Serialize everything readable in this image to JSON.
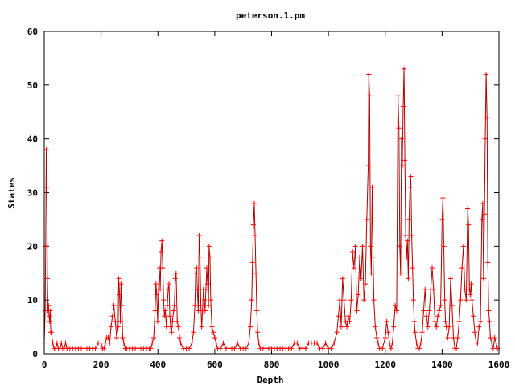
{
  "chart_data": {
    "type": "line",
    "title": "peterson.1.pm",
    "xlabel": "Depth",
    "ylabel": "States",
    "xlim": [
      0,
      1600
    ],
    "ylim": [
      0,
      60
    ],
    "x_ticks": [
      "0",
      "200",
      "400",
      "600",
      "800",
      "1000",
      "1200",
      "1400",
      "1600"
    ],
    "y_ticks": [
      "0",
      "10",
      "20",
      "30",
      "40",
      "50",
      "60"
    ],
    "grid": false,
    "legend": "none",
    "marker": "plus",
    "series_color": "#ff0000",
    "line_color": "#b00000",
    "points": [
      [
        0,
        2
      ],
      [
        3,
        8
      ],
      [
        5,
        20
      ],
      [
        7,
        38
      ],
      [
        9,
        31
      ],
      [
        11,
        14
      ],
      [
        13,
        8
      ],
      [
        15,
        9
      ],
      [
        17,
        7
      ],
      [
        19,
        6
      ],
      [
        21,
        8
      ],
      [
        23,
        4
      ],
      [
        25,
        4
      ],
      [
        30,
        2
      ],
      [
        35,
        1
      ],
      [
        40,
        1
      ],
      [
        45,
        2
      ],
      [
        50,
        1
      ],
      [
        55,
        1
      ],
      [
        60,
        2
      ],
      [
        65,
        1
      ],
      [
        70,
        1
      ],
      [
        75,
        2
      ],
      [
        80,
        1
      ],
      [
        90,
        1
      ],
      [
        100,
        1
      ],
      [
        110,
        1
      ],
      [
        120,
        1
      ],
      [
        130,
        1
      ],
      [
        140,
        1
      ],
      [
        150,
        1
      ],
      [
        160,
        1
      ],
      [
        170,
        1
      ],
      [
        180,
        1
      ],
      [
        190,
        2
      ],
      [
        200,
        2
      ],
      [
        205,
        1
      ],
      [
        210,
        1
      ],
      [
        215,
        2
      ],
      [
        220,
        3
      ],
      [
        225,
        3
      ],
      [
        230,
        2
      ],
      [
        235,
        5
      ],
      [
        240,
        7
      ],
      [
        245,
        9
      ],
      [
        250,
        6
      ],
      [
        255,
        3
      ],
      [
        260,
        5
      ],
      [
        262,
        14
      ],
      [
        265,
        11
      ],
      [
        268,
        6
      ],
      [
        270,
        13
      ],
      [
        273,
        9
      ],
      [
        276,
        3
      ],
      [
        280,
        2
      ],
      [
        285,
        1
      ],
      [
        290,
        1
      ],
      [
        300,
        1
      ],
      [
        310,
        1
      ],
      [
        320,
        1
      ],
      [
        330,
        1
      ],
      [
        340,
        1
      ],
      [
        350,
        1
      ],
      [
        360,
        1
      ],
      [
        370,
        1
      ],
      [
        375,
        1
      ],
      [
        380,
        2
      ],
      [
        385,
        3
      ],
      [
        390,
        8
      ],
      [
        393,
        13
      ],
      [
        396,
        11
      ],
      [
        399,
        6
      ],
      [
        402,
        12
      ],
      [
        405,
        16
      ],
      [
        408,
        12
      ],
      [
        411,
        19
      ],
      [
        414,
        21
      ],
      [
        417,
        16
      ],
      [
        420,
        10
      ],
      [
        423,
        7
      ],
      [
        426,
        8
      ],
      [
        430,
        5
      ],
      [
        433,
        9
      ],
      [
        436,
        12
      ],
      [
        439,
        13
      ],
      [
        442,
        7
      ],
      [
        445,
        5
      ],
      [
        448,
        4
      ],
      [
        451,
        6
      ],
      [
        455,
        8
      ],
      [
        458,
        9
      ],
      [
        461,
        14
      ],
      [
        464,
        15
      ],
      [
        468,
        6
      ],
      [
        472,
        5
      ],
      [
        476,
        3
      ],
      [
        480,
        2
      ],
      [
        490,
        1
      ],
      [
        500,
        1
      ],
      [
        510,
        1
      ],
      [
        520,
        2
      ],
      [
        525,
        4
      ],
      [
        530,
        9
      ],
      [
        533,
        15
      ],
      [
        536,
        16
      ],
      [
        539,
        12
      ],
      [
        542,
        8
      ],
      [
        545,
        22
      ],
      [
        548,
        18
      ],
      [
        551,
        9
      ],
      [
        554,
        5
      ],
      [
        557,
        8
      ],
      [
        560,
        12
      ],
      [
        563,
        10
      ],
      [
        566,
        8
      ],
      [
        569,
        12
      ],
      [
        572,
        16
      ],
      [
        575,
        13
      ],
      [
        578,
        9
      ],
      [
        580,
        20
      ],
      [
        583,
        18
      ],
      [
        586,
        10
      ],
      [
        590,
        5
      ],
      [
        595,
        4
      ],
      [
        600,
        3
      ],
      [
        605,
        2
      ],
      [
        610,
        1
      ],
      [
        620,
        1
      ],
      [
        630,
        2
      ],
      [
        640,
        1
      ],
      [
        650,
        1
      ],
      [
        660,
        1
      ],
      [
        670,
        1
      ],
      [
        680,
        2
      ],
      [
        690,
        1
      ],
      [
        700,
        1
      ],
      [
        710,
        1
      ],
      [
        720,
        2
      ],
      [
        725,
        5
      ],
      [
        730,
        10
      ],
      [
        733,
        17
      ],
      [
        736,
        24
      ],
      [
        739,
        28
      ],
      [
        742,
        22
      ],
      [
        745,
        15
      ],
      [
        748,
        8
      ],
      [
        751,
        4
      ],
      [
        755,
        2
      ],
      [
        760,
        1
      ],
      [
        770,
        1
      ],
      [
        780,
        1
      ],
      [
        790,
        1
      ],
      [
        800,
        1
      ],
      [
        810,
        1
      ],
      [
        820,
        1
      ],
      [
        830,
        1
      ],
      [
        840,
        1
      ],
      [
        850,
        1
      ],
      [
        860,
        1
      ],
      [
        870,
        1
      ],
      [
        880,
        2
      ],
      [
        890,
        2
      ],
      [
        900,
        1
      ],
      [
        910,
        1
      ],
      [
        920,
        1
      ],
      [
        930,
        2
      ],
      [
        940,
        2
      ],
      [
        950,
        2
      ],
      [
        960,
        2
      ],
      [
        970,
        1
      ],
      [
        980,
        1
      ],
      [
        990,
        2
      ],
      [
        1000,
        1
      ],
      [
        1010,
        1
      ],
      [
        1020,
        2
      ],
      [
        1030,
        4
      ],
      [
        1035,
        7
      ],
      [
        1040,
        10
      ],
      [
        1045,
        5
      ],
      [
        1050,
        14
      ],
      [
        1055,
        10
      ],
      [
        1060,
        6
      ],
      [
        1065,
        5
      ],
      [
        1070,
        7
      ],
      [
        1075,
        6
      ],
      [
        1080,
        10
      ],
      [
        1085,
        19
      ],
      [
        1090,
        16
      ],
      [
        1095,
        20
      ],
      [
        1100,
        8
      ],
      [
        1105,
        11
      ],
      [
        1110,
        18
      ],
      [
        1115,
        14
      ],
      [
        1120,
        20
      ],
      [
        1125,
        10
      ],
      [
        1130,
        13
      ],
      [
        1135,
        25
      ],
      [
        1140,
        35
      ],
      [
        1142,
        52
      ],
      [
        1145,
        48
      ],
      [
        1148,
        20
      ],
      [
        1151,
        15
      ],
      [
        1154,
        31
      ],
      [
        1157,
        18
      ],
      [
        1160,
        10
      ],
      [
        1165,
        5
      ],
      [
        1170,
        3
      ],
      [
        1175,
        2
      ],
      [
        1180,
        1
      ],
      [
        1190,
        1
      ],
      [
        1200,
        3
      ],
      [
        1205,
        6
      ],
      [
        1210,
        4
      ],
      [
        1215,
        2
      ],
      [
        1220,
        1
      ],
      [
        1225,
        2
      ],
      [
        1230,
        5
      ],
      [
        1235,
        9
      ],
      [
        1240,
        8
      ],
      [
        1245,
        48
      ],
      [
        1248,
        42
      ],
      [
        1251,
        20
      ],
      [
        1254,
        15
      ],
      [
        1257,
        40
      ],
      [
        1260,
        35
      ],
      [
        1263,
        46
      ],
      [
        1266,
        53
      ],
      [
        1269,
        36
      ],
      [
        1272,
        22
      ],
      [
        1275,
        18
      ],
      [
        1278,
        21
      ],
      [
        1281,
        14
      ],
      [
        1284,
        25
      ],
      [
        1287,
        31
      ],
      [
        1290,
        33
      ],
      [
        1293,
        22
      ],
      [
        1296,
        16
      ],
      [
        1299,
        10
      ],
      [
        1302,
        6
      ],
      [
        1305,
        4
      ],
      [
        1310,
        2
      ],
      [
        1315,
        1
      ],
      [
        1320,
        1
      ],
      [
        1325,
        2
      ],
      [
        1330,
        4
      ],
      [
        1335,
        8
      ],
      [
        1340,
        12
      ],
      [
        1345,
        7
      ],
      [
        1350,
        5
      ],
      [
        1355,
        8
      ],
      [
        1360,
        12
      ],
      [
        1365,
        16
      ],
      [
        1370,
        12
      ],
      [
        1375,
        6
      ],
      [
        1380,
        5
      ],
      [
        1385,
        7
      ],
      [
        1390,
        8
      ],
      [
        1395,
        9
      ],
      [
        1400,
        25
      ],
      [
        1403,
        29
      ],
      [
        1406,
        20
      ],
      [
        1409,
        10
      ],
      [
        1412,
        6
      ],
      [
        1415,
        5
      ],
      [
        1420,
        3
      ],
      [
        1425,
        5
      ],
      [
        1430,
        14
      ],
      [
        1435,
        9
      ],
      [
        1440,
        3
      ],
      [
        1445,
        1
      ],
      [
        1450,
        1
      ],
      [
        1455,
        3
      ],
      [
        1460,
        6
      ],
      [
        1465,
        10
      ],
      [
        1470,
        16
      ],
      [
        1475,
        20
      ],
      [
        1480,
        12
      ],
      [
        1485,
        10
      ],
      [
        1490,
        27
      ],
      [
        1493,
        24
      ],
      [
        1496,
        12
      ],
      [
        1499,
        11
      ],
      [
        1502,
        13
      ],
      [
        1505,
        10
      ],
      [
        1510,
        7
      ],
      [
        1515,
        4
      ],
      [
        1520,
        2
      ],
      [
        1525,
        2
      ],
      [
        1530,
        5
      ],
      [
        1535,
        6
      ],
      [
        1540,
        25
      ],
      [
        1543,
        28
      ],
      [
        1546,
        14
      ],
      [
        1549,
        26
      ],
      [
        1552,
        40
      ],
      [
        1555,
        52
      ],
      [
        1558,
        44
      ],
      [
        1561,
        17
      ],
      [
        1564,
        8
      ],
      [
        1567,
        6
      ],
      [
        1570,
        3
      ],
      [
        1575,
        2
      ],
      [
        1580,
        1
      ],
      [
        1585,
        3
      ],
      [
        1590,
        2
      ],
      [
        1595,
        1
      ]
    ]
  }
}
